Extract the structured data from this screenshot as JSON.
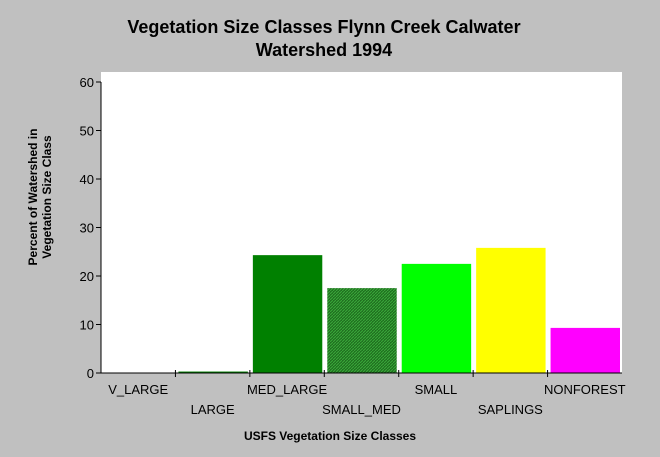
{
  "chart_data": {
    "type": "bar",
    "title_line1": "Vegetation Size Classes Flynn Creek Calwater",
    "title_line2": "Watershed 1994",
    "xlabel": "USFS Vegetation Size Classes",
    "ylabel_line1": "Percent of Watershed in",
    "ylabel_line2": "Vegetation Size Class",
    "ylim": [
      0,
      60
    ],
    "yticks": [
      "0",
      "10",
      "20",
      "30",
      "40",
      "50",
      "60"
    ],
    "grid": false,
    "categories": [
      "V_LARGE",
      "LARGE",
      "MED_LARGE",
      "SMALL_MED",
      "SMALL",
      "SAPLINGS",
      "NONFOREST"
    ],
    "values": [
      0,
      0.3,
      24.3,
      17.5,
      22.5,
      25.8,
      9.3
    ],
    "colors": [
      "#008000",
      "#008000",
      "#008000",
      "#2e8b2e",
      "#00ff00",
      "#ffff00",
      "#ff00ff"
    ],
    "hatched": [
      false,
      false,
      false,
      true,
      false,
      false,
      false
    ],
    "plot_background": "#ffffff",
    "page_background": "#c0c0c0"
  }
}
